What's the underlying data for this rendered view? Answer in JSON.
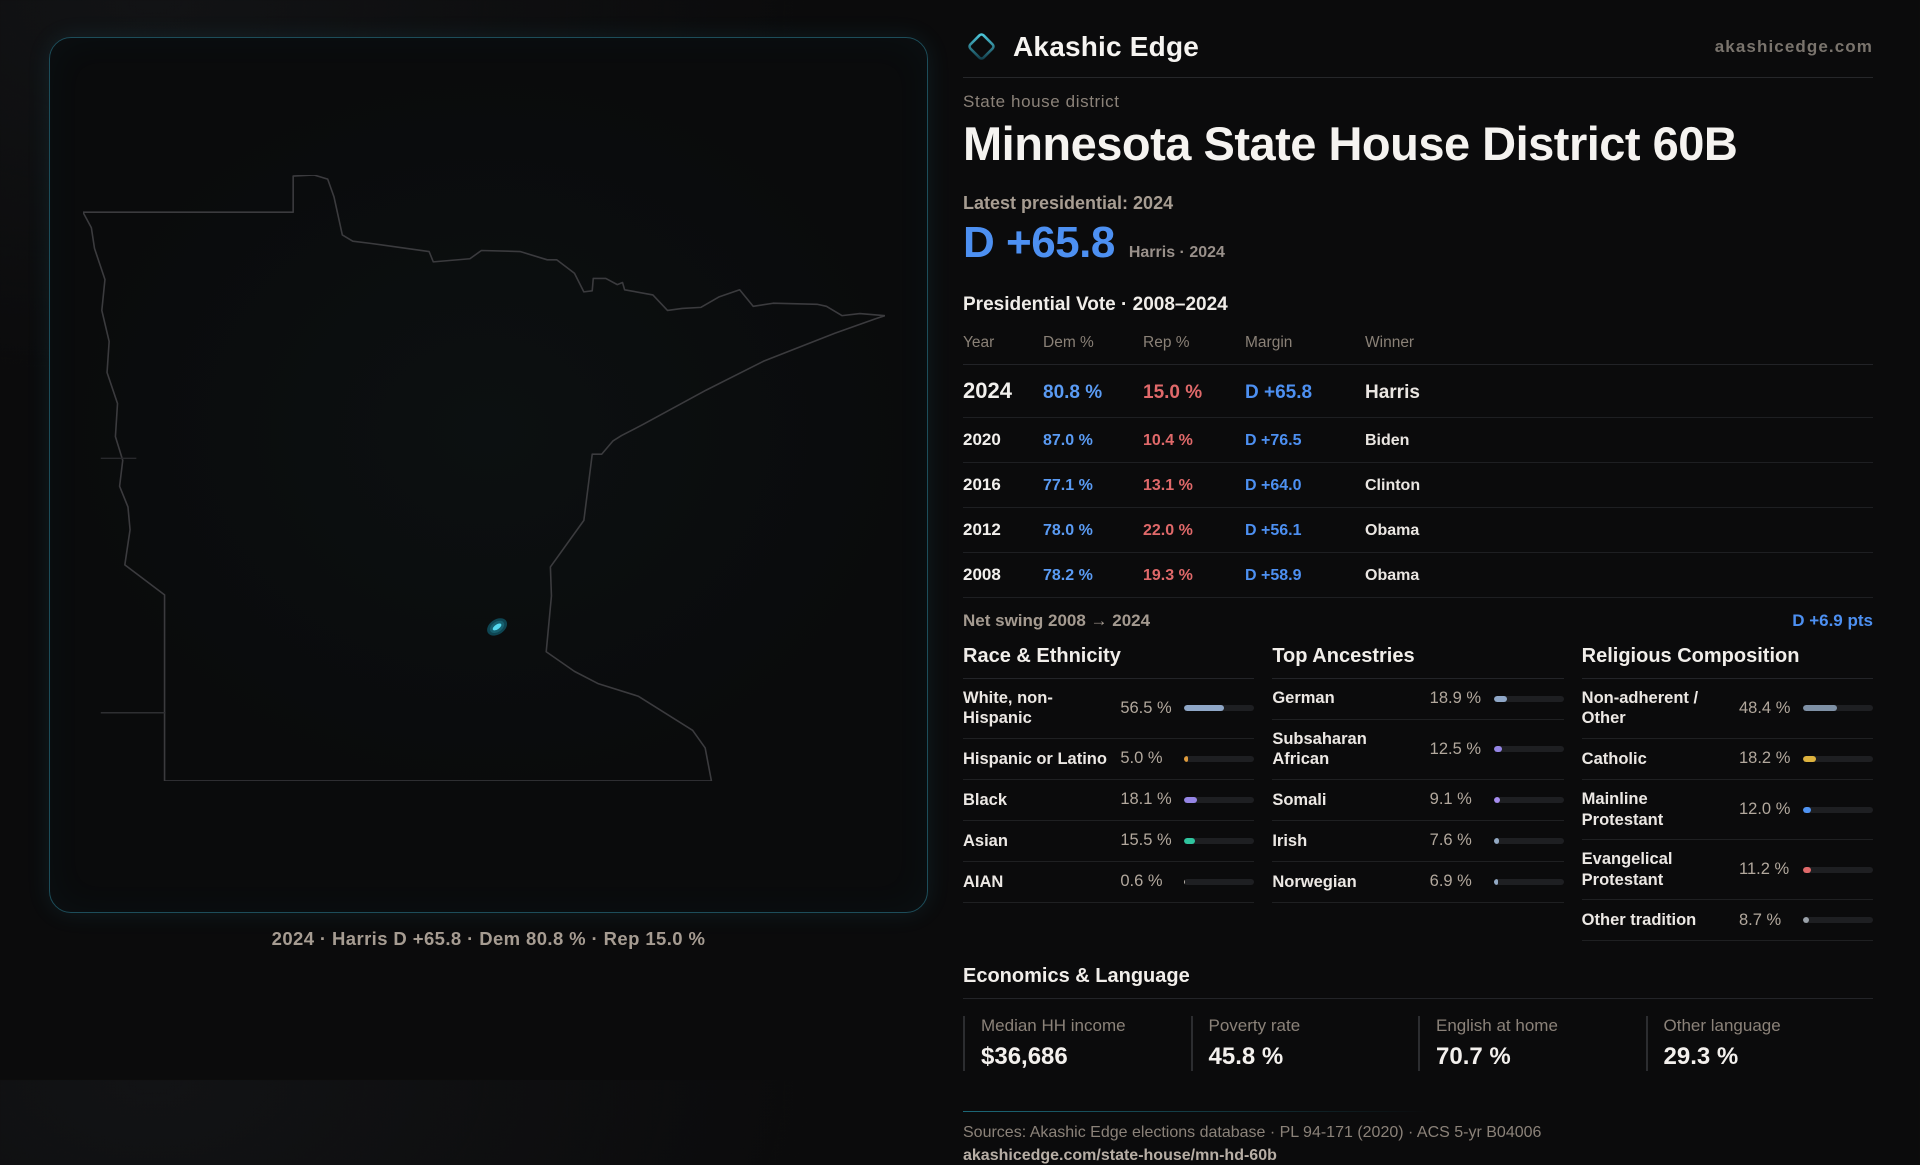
{
  "brand": {
    "name": "Akashic Edge",
    "domain": "akashicedge.com",
    "accent_cyan": "#3ac8e2"
  },
  "page": {
    "kicker": "State house district",
    "title": "Minnesota State House District 60B",
    "latest_label": "Latest presidential: 2024",
    "headline_margin": "D +65.8",
    "headline_sub": "Harris · 2024"
  },
  "map": {
    "caption": "2024 · Harris D +65.8 · Dem 80.8 % · Rep 15.0 %",
    "district_marker_color": "#55d9ef",
    "outline_color": "#3b3b3e",
    "panel_border_color": "#1d4d5a"
  },
  "colors": {
    "dem_blue": "#4d90f2",
    "rep_red": "#e0696a"
  },
  "vote_table": {
    "title": "Presidential Vote · 2008–2024",
    "columns": [
      "Year",
      "Dem %",
      "Rep %",
      "Margin",
      "Winner"
    ],
    "rows": [
      {
        "year": "2024",
        "dem": "80.8 %",
        "rep": "15.0 %",
        "margin": "D +65.8",
        "winner": "Harris"
      },
      {
        "year": "2020",
        "dem": "87.0 %",
        "rep": "10.4 %",
        "margin": "D +76.5",
        "winner": "Biden"
      },
      {
        "year": "2016",
        "dem": "77.1 %",
        "rep": "13.1 %",
        "margin": "D +64.0",
        "winner": "Clinton"
      },
      {
        "year": "2012",
        "dem": "78.0 %",
        "rep": "22.0 %",
        "margin": "D +56.1",
        "winner": "Obama"
      },
      {
        "year": "2008",
        "dem": "78.2 %",
        "rep": "19.3 %",
        "margin": "D +58.9",
        "winner": "Obama"
      }
    ],
    "net_swing_label": "Net swing 2008 → 2024",
    "net_swing_value": "D +6.9 pts"
  },
  "demographics": [
    {
      "title": "Race & Ethnicity",
      "rows": [
        {
          "label": "White, non-Hispanic",
          "value_label": "56.5 %",
          "value": 56.5,
          "color": "#8fa7c7"
        },
        {
          "label": "Hispanic or Latino",
          "value_label": "5.0 %",
          "value": 5.0,
          "color": "#df9b3c"
        },
        {
          "label": "Black",
          "value_label": "18.1 %",
          "value": 18.1,
          "color": "#9585e5"
        },
        {
          "label": "Asian",
          "value_label": "15.5 %",
          "value": 15.5,
          "color": "#2fc49e"
        },
        {
          "label": "AIAN",
          "value_label": "0.6 %",
          "value": 0.6,
          "color": "#b9b2a9"
        }
      ]
    },
    {
      "title": "Top Ancestries",
      "rows": [
        {
          "label": "German",
          "value_label": "18.9 %",
          "value": 18.9,
          "color": "#8fa7c7"
        },
        {
          "label": "Subsaharan African",
          "value_label": "12.5 %",
          "value": 12.5,
          "color": "#9585e5"
        },
        {
          "label": "Somali",
          "value_label": "9.1 %",
          "value": 9.1,
          "color": "#a78df0"
        },
        {
          "label": "Irish",
          "value_label": "7.6 %",
          "value": 7.6,
          "color": "#93a9c4"
        },
        {
          "label": "Norwegian",
          "value_label": "6.9 %",
          "value": 6.9,
          "color": "#93a9c4"
        }
      ]
    },
    {
      "title": "Religious Composition",
      "rows": [
        {
          "label": "Non-adherent / Other",
          "value_label": "48.4 %",
          "value": 48.4,
          "color": "#7e90a5"
        },
        {
          "label": "Catholic",
          "value_label": "18.2 %",
          "value": 18.2,
          "color": "#ddb23e"
        },
        {
          "label": "Mainline Protestant",
          "value_label": "12.0 %",
          "value": 12.0,
          "color": "#4f93f2"
        },
        {
          "label": "Evangelical Protestant",
          "value_label": "11.2 %",
          "value": 11.2,
          "color": "#e0696a"
        },
        {
          "label": "Other tradition",
          "value_label": "8.7 %",
          "value": 8.7,
          "color": "#9aa1a9"
        }
      ]
    }
  ],
  "economics": {
    "title": "Economics & Language",
    "stats": [
      {
        "label": "Median HH income",
        "value": "$36,686"
      },
      {
        "label": "Poverty rate",
        "value": "45.8 %"
      },
      {
        "label": "English at home",
        "value": "70.7 %"
      },
      {
        "label": "Other language",
        "value": "29.3 %"
      }
    ]
  },
  "footer": {
    "sources": "Sources: Akashic Edge elections database · PL 94-171 (2020) · ACS 5-yr B04006",
    "permalink": "akashicedge.com/state-house/mn-hd-60b"
  }
}
